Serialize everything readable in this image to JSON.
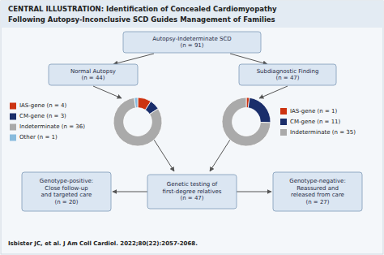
{
  "chart_data": [
    {
      "type": "pie",
      "title": "CENTRAL ILLUSTRATION: Identification of Concealed Cardiomyopathy",
      "subtitle": "Following Autopsy-Inconclusive SCD Guides Management of Families",
      "annotations": [
        "Autopsy-Indeterminate SCD\n(n = 91)",
        "Normal Autopsy\n(n = 44)",
        "Subdiagnostic Finding\n(n = 47)",
        "Genetic testing of\nfirst-degree relatives\n(n = 47)",
        "Genotype-positive:\nClose follow-up\nand targeted care\n(n = 20)",
        "Genotype-negative:\nReassured and\nreleased from care\n(n = 27)",
        "Isbister JC, et al. J Am Coll Cardiol. 2022;80(22):2057-2068."
      ],
      "categories": [
        "IAS-gene (n = 4)",
        "CM-gene (n = 3)",
        "Indeterminate (n = 36)",
        "Other (n = 1)"
      ],
      "values": [
        4,
        3,
        36,
        1
      ],
      "colors": [
        "#cc3311",
        "#1a2e6b",
        "#aaaaaa",
        "#88bbdd"
      ]
    },
    {
      "type": "pie",
      "categories": [
        "IAS-gene (n = 1)",
        "CM-gene (n = 11)",
        "Indeterminate (n = 35)"
      ],
      "values": [
        1,
        11,
        35
      ],
      "colors": [
        "#cc3311",
        "#1a2e6b",
        "#aaaaaa"
      ]
    }
  ]
}
